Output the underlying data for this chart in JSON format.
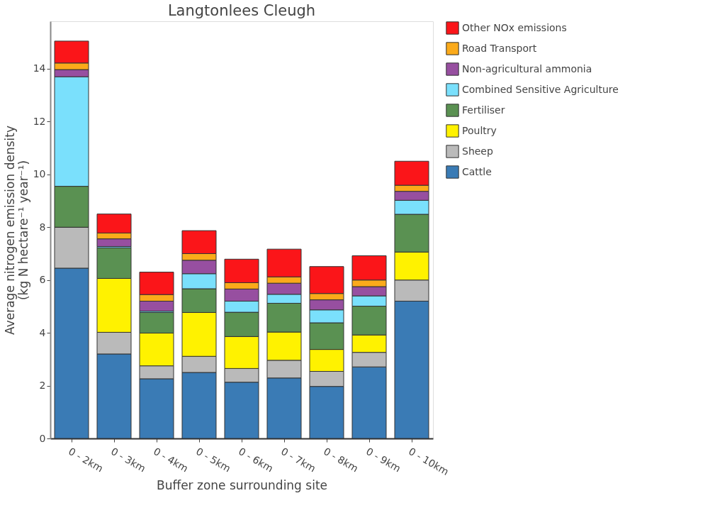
{
  "chart_data": {
    "type": "bar",
    "title": "Langtonlees Cleugh",
    "xlabel": "Buffer zone surrounding site",
    "ylabel": "Average nitrogen emission density\n(kg N hectare⁻¹ year⁻¹)",
    "categories": [
      "0 - 2km",
      "0 - 3km",
      "0 - 4km",
      "0 - 5km",
      "0 - 6km",
      "0 - 7km",
      "0 - 8km",
      "0 - 9km",
      "0 - 10km"
    ],
    "stacked": true,
    "ylim": [
      0,
      15.8
    ],
    "yticks": [
      0,
      2,
      4,
      6,
      8,
      10,
      12,
      14
    ],
    "grid": false,
    "legend": "top right",
    "series": [
      {
        "name": "Cattle",
        "color": "#3a7bb5",
        "values": [
          6.45,
          3.2,
          2.26,
          2.5,
          2.13,
          2.29,
          1.97,
          2.71,
          5.2
        ]
      },
      {
        "name": "Sheep",
        "color": "#bababa",
        "values": [
          1.55,
          0.82,
          0.49,
          0.61,
          0.52,
          0.67,
          0.57,
          0.55,
          0.8
        ]
      },
      {
        "name": "Poultry",
        "color": "#fff200",
        "values": [
          0,
          2.04,
          1.24,
          1.66,
          1.21,
          1.07,
          0.83,
          0.66,
          1.06
        ]
      },
      {
        "name": "Fertiliser",
        "color": "#5a9152",
        "values": [
          1.55,
          1.16,
          0.78,
          0.9,
          0.92,
          1.09,
          1.01,
          1.09,
          1.43
        ]
      },
      {
        "name": "Combined Sensitive Agriculture",
        "color": "#7ae0fc",
        "values": [
          4.15,
          0.05,
          0.05,
          0.57,
          0.42,
          0.34,
          0.49,
          0.39,
          0.53
        ]
      },
      {
        "name": "Non-agricultural ammonia",
        "color": "#974fa0",
        "values": [
          0.27,
          0.29,
          0.38,
          0.51,
          0.46,
          0.42,
          0.38,
          0.35,
          0.34
        ]
      },
      {
        "name": "Road Transport",
        "color": "#fbaa1a",
        "values": [
          0.25,
          0.22,
          0.25,
          0.25,
          0.24,
          0.24,
          0.24,
          0.25,
          0.23
        ]
      },
      {
        "name": "Other NOx emissions",
        "color": "#fb1519",
        "values": [
          0.83,
          0.72,
          0.85,
          0.87,
          0.89,
          1.05,
          1.02,
          0.92,
          0.91
        ]
      }
    ]
  }
}
